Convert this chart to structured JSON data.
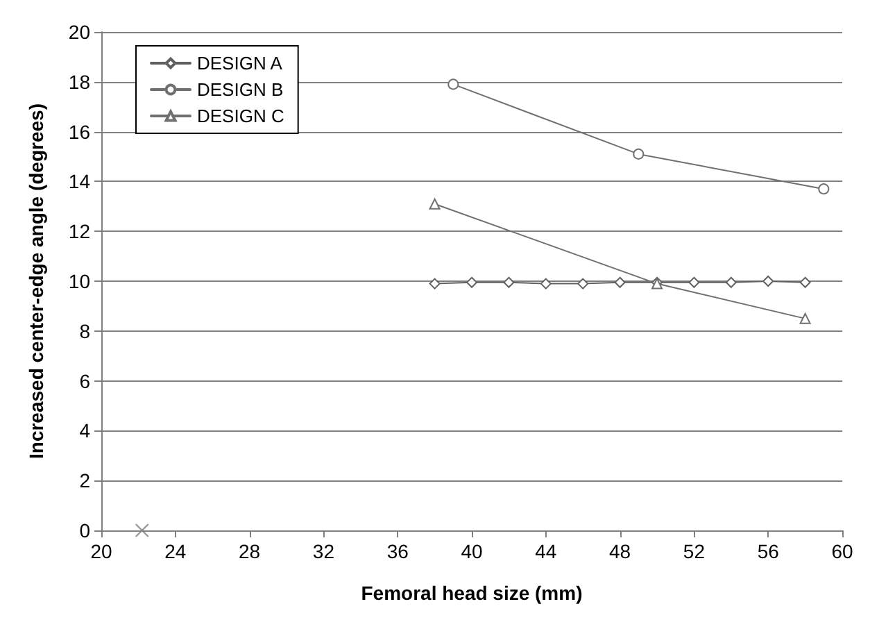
{
  "chart_data": {
    "type": "line",
    "xlabel": "Femoral head size (mm)",
    "ylabel": "Increased center-edge angle (degrees)",
    "xlim": [
      20,
      60
    ],
    "xticks": [
      20,
      24,
      28,
      32,
      36,
      40,
      44,
      48,
      52,
      56,
      60
    ],
    "ylim": [
      0,
      20
    ],
    "yticks": [
      0,
      2,
      4,
      6,
      8,
      10,
      12,
      14,
      16,
      18,
      20
    ],
    "grid": "y",
    "legend": "top left",
    "line_style": "solid",
    "series": [
      {
        "type": "scatter",
        "marker": "cross",
        "color": "#808080",
        "x": [
          22.2
        ],
        "values": [
          0
        ]
      },
      {
        "name": "DESIGN A",
        "marker": "diamond",
        "color": "#606060",
        "x": [
          38,
          40,
          42,
          44,
          46,
          48,
          50,
          52,
          54,
          56,
          58
        ],
        "values": [
          9.9,
          9.95,
          9.95,
          9.9,
          9.9,
          9.95,
          9.95,
          9.95,
          9.95,
          10,
          9.95
        ]
      },
      {
        "name": "DESIGN B",
        "marker": "circle",
        "color": "#707070",
        "x": [
          39,
          49,
          59
        ],
        "values": [
          17.9,
          15.1,
          13.7
        ]
      },
      {
        "name": "DESIGN C",
        "marker": "triangle",
        "color": "#707070",
        "x": [
          38,
          50,
          58
        ],
        "values": [
          13.1,
          9.9,
          8.5
        ]
      }
    ]
  }
}
